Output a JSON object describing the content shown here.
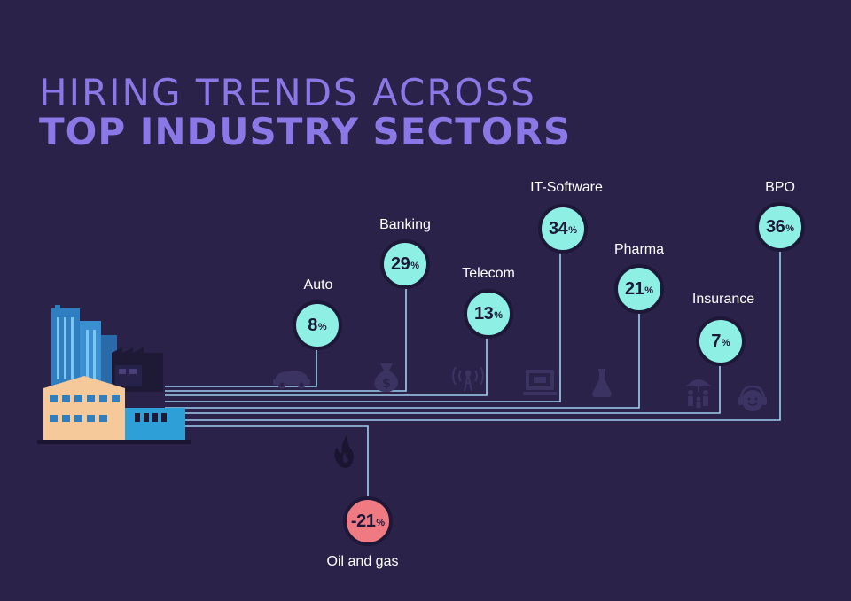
{
  "title": {
    "line1": "HIRING TRENDS ACROSS",
    "line2": "TOP INDUSTRY SECTORS"
  },
  "colors": {
    "background": "#2b2249",
    "title": "#8a78e6",
    "positive": "#8ef0e4",
    "negative": "#f07a82",
    "line": "#9fd0f0"
  },
  "sectors": [
    {
      "name": "Auto",
      "value": "8",
      "unit": "%",
      "icon": "car-icon"
    },
    {
      "name": "Banking",
      "value": "29",
      "unit": "%",
      "icon": "money-bag-icon"
    },
    {
      "name": "Telecom",
      "value": "13",
      "unit": "%",
      "icon": "antenna-icon"
    },
    {
      "name": "IT-Software",
      "value": "34",
      "unit": "%",
      "icon": "computer-icon"
    },
    {
      "name": "Pharma",
      "value": "21",
      "unit": "%",
      "icon": "flask-icon"
    },
    {
      "name": "Insurance",
      "value": "7",
      "unit": "%",
      "icon": "family-umbrella-icon"
    },
    {
      "name": "BPO",
      "value": "36",
      "unit": "%",
      "icon": "headset-icon"
    }
  ],
  "negative_sector": {
    "name": "Oil and gas",
    "value": "-21",
    "unit": "%",
    "icon": "flame-icon"
  }
}
